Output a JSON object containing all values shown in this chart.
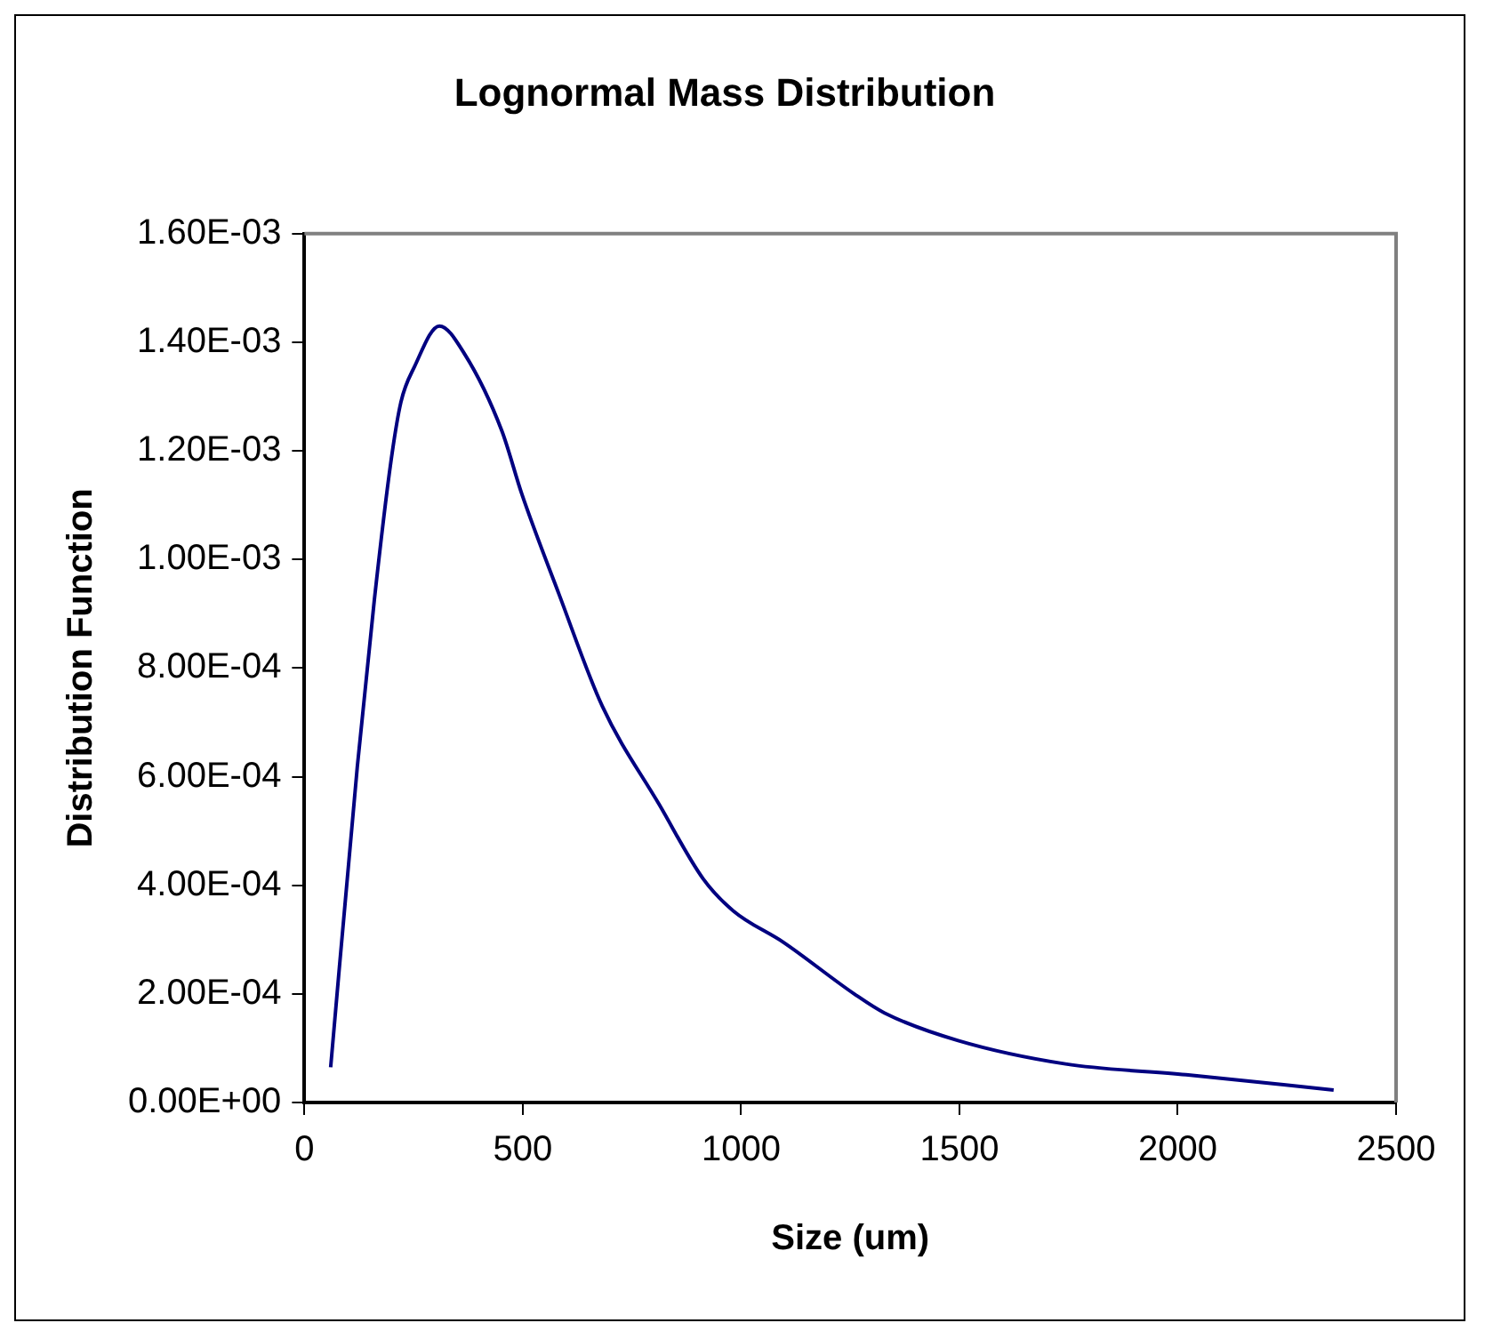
{
  "chart_data": {
    "type": "line",
    "title": "Lognormal Mass Distribution",
    "xlabel": "Size (um)",
    "ylabel": "Distribution Function",
    "x": [
      60,
      121,
      160,
      198,
      221,
      252,
      309,
      367,
      452,
      498,
      583,
      682,
      813,
      913,
      982,
      1097,
      1259,
      1328,
      1497,
      1743,
      2019,
      2357
    ],
    "series": [
      {
        "color": "#000080",
        "values": [
          6.5e-05,
          0.000618,
          0.000925,
          0.00118,
          0.00129,
          0.001355,
          0.00143,
          0.001378,
          0.001237,
          0.00112,
          0.000936,
          0.00073,
          0.000548,
          0.000412,
          0.000353,
          0.000295,
          0.0002,
          0.000165,
          0.000114,
          7.1e-05,
          5.1e-05,
          2.3e-05
        ]
      }
    ],
    "xlim": [
      0,
      2500
    ],
    "xticks": [
      0,
      500,
      1000,
      1500,
      2000,
      2500
    ],
    "ylim": [
      0,
      0.0016
    ],
    "yticks": [
      {
        "value": 0,
        "label": "0.00E+00"
      },
      {
        "value": 0.0002,
        "label": "2.00E-04"
      },
      {
        "value": 0.0004,
        "label": "4.00E-04"
      },
      {
        "value": 0.0006,
        "label": "6.00E-04"
      },
      {
        "value": 0.0008,
        "label": "8.00E-04"
      },
      {
        "value": 0.001,
        "label": "1.00E-03"
      },
      {
        "value": 0.0012,
        "label": "1.20E-03"
      },
      {
        "value": 0.0014,
        "label": "1.40E-03"
      },
      {
        "value": 0.0016,
        "label": "1.60E-03"
      }
    ],
    "grid": false,
    "legend": false,
    "marker": "none",
    "line_style": "solid"
  }
}
